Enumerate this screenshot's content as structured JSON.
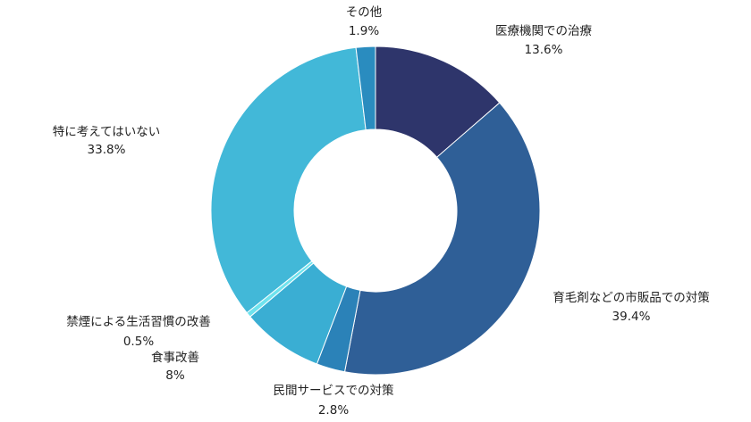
{
  "chart_data": {
    "type": "pie",
    "donut": true,
    "slices": [
      {
        "label": "医療機関での治療",
        "value": 13.6,
        "value_text": "13.6%",
        "color": "#2e356b"
      },
      {
        "label": "育毛剤などの市販品での対策",
        "value": 39.4,
        "value_text": "39.4%",
        "color": "#2f5f97"
      },
      {
        "label": "民間サービスでの対策",
        "value": 2.8,
        "value_text": "2.8%",
        "color": "#2b82b8"
      },
      {
        "label": "食事改善",
        "value": 8,
        "value_text": "8%",
        "color": "#3aaed3"
      },
      {
        "label": "禁煙による生活習慣の改善",
        "value": 0.5,
        "value_text": "0.5%",
        "color": "#6ee3ee"
      },
      {
        "label": "特に考えてはいない",
        "value": 33.8,
        "value_text": "33.8%",
        "color": "#42b8d8"
      },
      {
        "label": "その他",
        "value": 1.9,
        "value_text": "1.9%",
        "color": "#2a8cbf"
      }
    ]
  }
}
